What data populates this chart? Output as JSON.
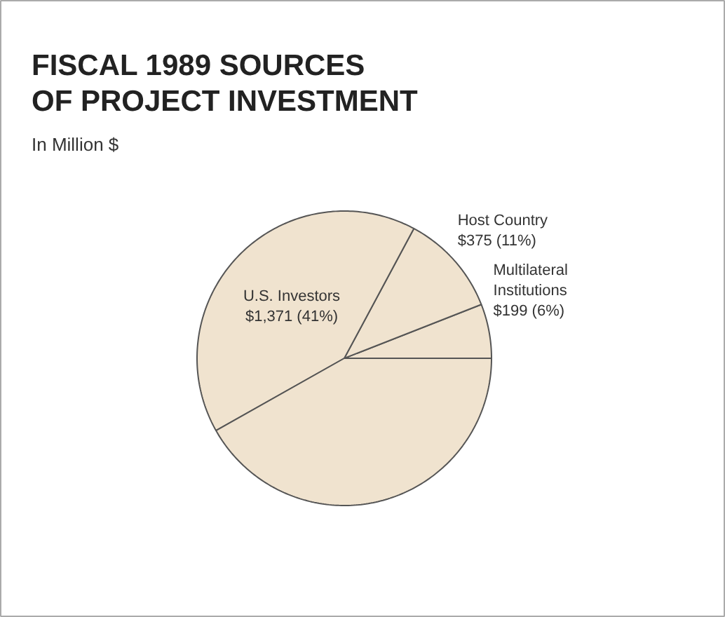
{
  "chart_data": {
    "type": "pie",
    "title": "FISCAL 1989 SOURCES\nOF PROJECT INVESTMENT",
    "subtitle": "In Million $",
    "categories": [
      "Multilateral\nInstitutions",
      "Host Country",
      "U.S. Investors",
      null
    ],
    "values": [
      199,
      375,
      1371,
      1399
    ],
    "value_labels": [
      "$199 (6%)",
      "$375 (11%)",
      "$1,371 (41%)",
      null
    ],
    "colors": [
      "#f0e3cf",
      "#f0e3cf",
      "#f0e3cf",
      "#f0e3cf"
    ]
  }
}
